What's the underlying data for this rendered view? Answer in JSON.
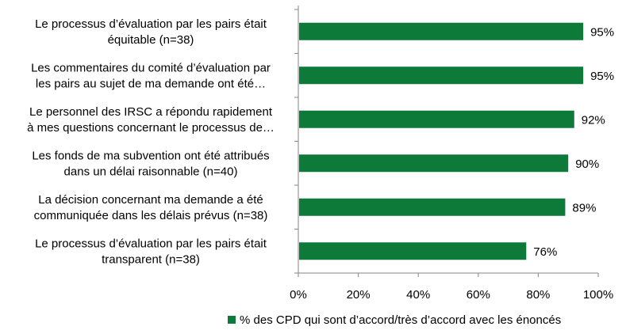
{
  "chart_data": {
    "type": "bar",
    "orientation": "horizontal",
    "categories": [
      [
        "Le processus d’évaluation par les pairs était",
        "équitable (n=38)"
      ],
      [
        "Les commentaires du comité d’évaluation par",
        "les pairs au sujet de ma demande ont été…"
      ],
      [
        "Le personnel des IRSC a répondu rapidement",
        "à mes questions concernant le processus de…"
      ],
      [
        "Les fonds de ma subvention ont été attribués",
        "dans un délai raisonnable (n=40)"
      ],
      [
        "La décision concernant ma demande a été",
        "communiquée dans les délais prévus (n=38)"
      ],
      [
        "Le processus d’évaluation par les pairs était",
        "transparent (n=38)"
      ]
    ],
    "series": [
      {
        "name": "% des CPD qui sont d’accord/très d’accord avec les énoncés",
        "values": [
          95,
          95,
          92,
          90,
          89,
          76
        ],
        "data_labels": [
          "95%",
          "95%",
          "92%",
          "90%",
          "89%",
          "76%"
        ],
        "color": "#0e7a3a"
      }
    ],
    "xlim": [
      0,
      100
    ],
    "ticks": [
      0,
      20,
      40,
      60,
      80,
      100
    ],
    "tick_labels": [
      "0%",
      "20%",
      "40%",
      "60%",
      "80%",
      "100%"
    ],
    "title": "",
    "xlabel": "",
    "ylabel": "",
    "grid": false,
    "legend_position": "bottom"
  }
}
